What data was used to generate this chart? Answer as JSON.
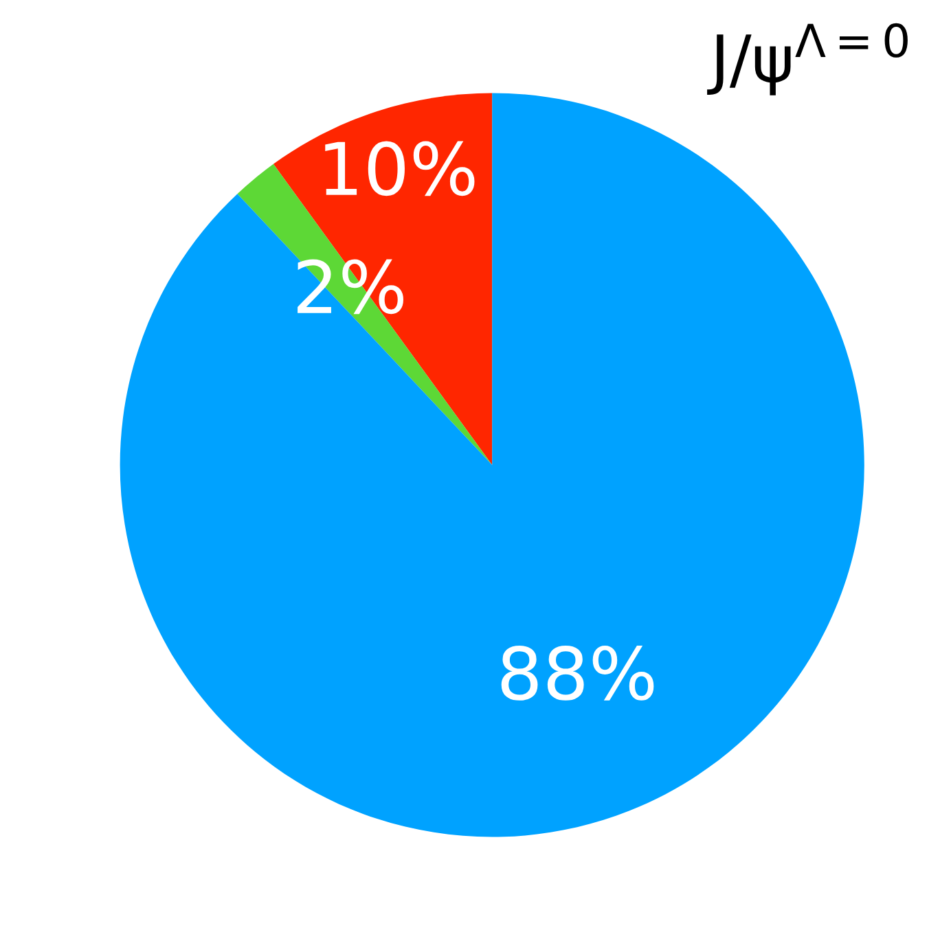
{
  "chart_data": {
    "type": "pie",
    "title": "J/ψ$^{Λ=0}$",
    "categories": [
      null,
      null,
      null
    ],
    "values": [
      10,
      2,
      88
    ],
    "colors": [
      "#ff2600",
      "#5dd836",
      "#00a2ff"
    ],
    "value_labels": [
      "10%",
      "2%",
      "88%"
    ]
  }
}
